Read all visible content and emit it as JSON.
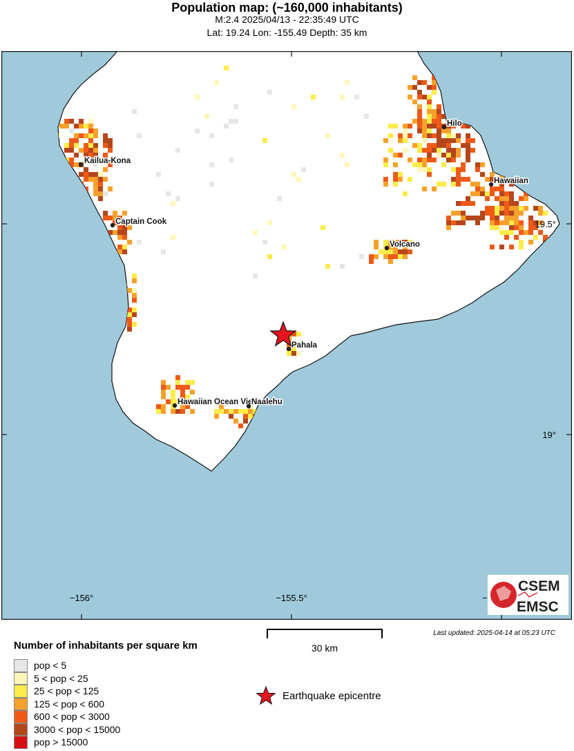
{
  "header": {
    "title": "Population map: (~160,000 inhabitants)",
    "event_line": "M:2.4 2025/04/13 - 22:35:49 UTC",
    "location_line": "Lat: 19.24 Lon: -155.49 Depth: 35 km"
  },
  "map": {
    "colors": {
      "sea": "#a0cadc",
      "land": "#ffffff",
      "epicentre": "#e8141e"
    },
    "towns": {
      "kailua_kona": "Kailua-Kona",
      "captain_cook": "Captain Cook",
      "hilo": "Hilo",
      "hawaiian": "Hawaiian",
      "volcano": "Volcano",
      "pahala": "Pahala",
      "hawaiian_ocean_view": "Hawaiian Ocean View",
      "naalehu": "Naalehu"
    },
    "grid_labels": {
      "lon_156": "−156°",
      "lon_155_5": "−155.5°",
      "lon_155": "−15",
      "lat_19_5": "19.5°",
      "lat_19": "19°"
    },
    "logo": {
      "top": "CSEM",
      "bottom": "EMSC"
    }
  },
  "footer": {
    "last_updated": "Last updated: 2025-04-14 at 05:23 UTC",
    "scale_label": "30 km"
  },
  "legend": {
    "title": "Number of inhabitants per square km",
    "items": [
      {
        "label": "pop < 5",
        "color": "#e6e6e6"
      },
      {
        "label": "5 < pop < 25",
        "color": "#fdf6b8"
      },
      {
        "label": "25 < pop < 125",
        "color": "#fbec4a"
      },
      {
        "label": "125 < pop < 600",
        "color": "#f7a12c"
      },
      {
        "label": "600 < pop < 3000",
        "color": "#ef5a18"
      },
      {
        "label": "3000 < pop < 15000",
        "color": "#b4461c"
      },
      {
        "label": "pop > 15000",
        "color": "#d60f14"
      }
    ],
    "epicentre_label": "Earthquake epicentre"
  }
}
